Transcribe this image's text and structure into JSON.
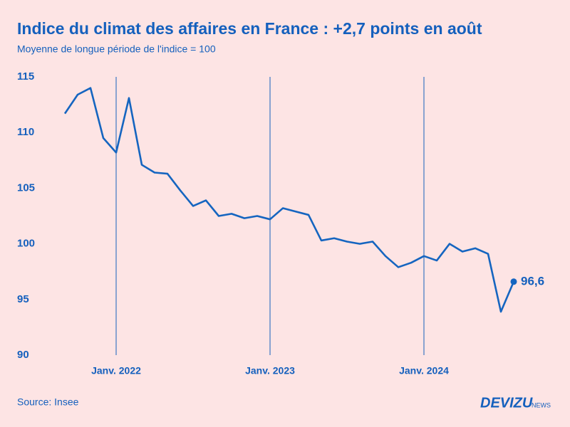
{
  "chart_data": {
    "type": "line",
    "title": "Indice du climat des affaires en France : +2,7 points en août",
    "subtitle": "Moyenne de longue période de l'indice = 100",
    "source": "Source: Insee",
    "brand": "DEVIZU",
    "brand_suffix": "NEWS",
    "x": [
      "2021-09",
      "2021-10",
      "2021-11",
      "2021-12",
      "2022-01",
      "2022-02",
      "2022-03",
      "2022-04",
      "2022-05",
      "2022-06",
      "2022-07",
      "2022-08",
      "2022-09",
      "2022-10",
      "2022-11",
      "2022-12",
      "2023-01",
      "2023-02",
      "2023-03",
      "2023-04",
      "2023-05",
      "2023-06",
      "2023-07",
      "2023-08",
      "2023-09",
      "2023-10",
      "2023-11",
      "2023-12",
      "2024-01",
      "2024-02",
      "2024-03",
      "2024-04",
      "2024-05",
      "2024-06",
      "2024-07",
      "2024-08"
    ],
    "series": [
      {
        "color": "#1565c0",
        "values": [
          111.7,
          113.4,
          114.0,
          109.5,
          108.2,
          113.1,
          107.1,
          106.4,
          106.3,
          104.8,
          103.4,
          103.9,
          102.5,
          102.7,
          102.3,
          102.5,
          102.2,
          103.2,
          102.9,
          102.6,
          100.3,
          100.5,
          100.2,
          100.0,
          100.2,
          98.9,
          97.9,
          98.3,
          98.9,
          98.5,
          100.0,
          99.3,
          99.6,
          99.1,
          93.9,
          96.6
        ],
        "value_labels": [
          null,
          null,
          null,
          null,
          null,
          null,
          null,
          null,
          null,
          null,
          null,
          null,
          null,
          null,
          null,
          null,
          null,
          null,
          null,
          null,
          null,
          null,
          null,
          null,
          null,
          null,
          null,
          null,
          null,
          null,
          null,
          null,
          null,
          null,
          null,
          "96,6"
        ]
      }
    ],
    "xlim": [
      "2021-07",
      "2024-11"
    ],
    "xticks": [
      {
        "value": "2022-01",
        "label": "Janv. 2022"
      },
      {
        "value": "2023-01",
        "label": "Janv. 2023"
      },
      {
        "value": "2024-01",
        "label": "Janv. 2024"
      }
    ],
    "ylim": [
      90,
      115
    ],
    "yticks": [
      90,
      95,
      100,
      105,
      110,
      115
    ],
    "x_grid": true
  }
}
